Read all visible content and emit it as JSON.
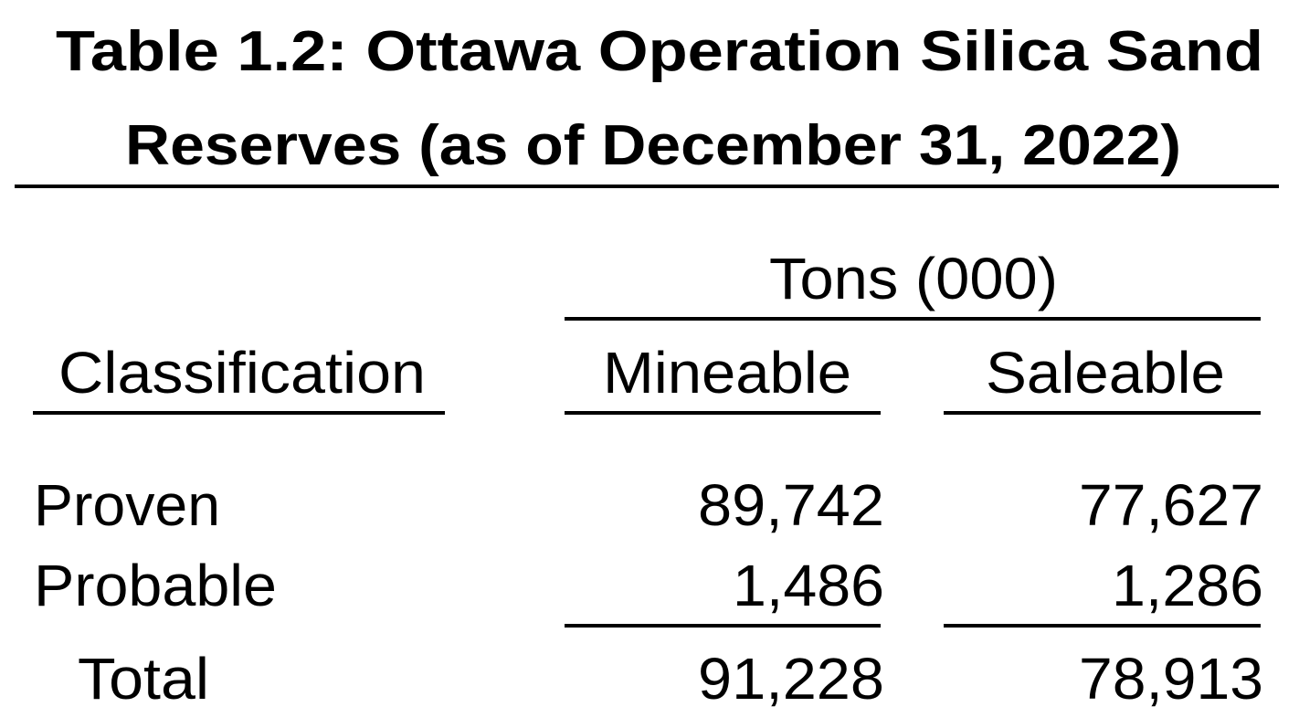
{
  "title": [
    "Table 1.2: Ottawa Operation Silica Sand",
    "Reserves (as of December 31, 2022)"
  ],
  "table": {
    "group_header": "Tons (000)",
    "columns": [
      "Classification",
      "Mineable",
      "Saleable"
    ],
    "rows": [
      [
        "Proven",
        "89,742",
        "77,627"
      ],
      [
        "Probable",
        "1,486",
        "1,286"
      ]
    ],
    "total": [
      "Total",
      "91,228",
      "78,913"
    ]
  }
}
